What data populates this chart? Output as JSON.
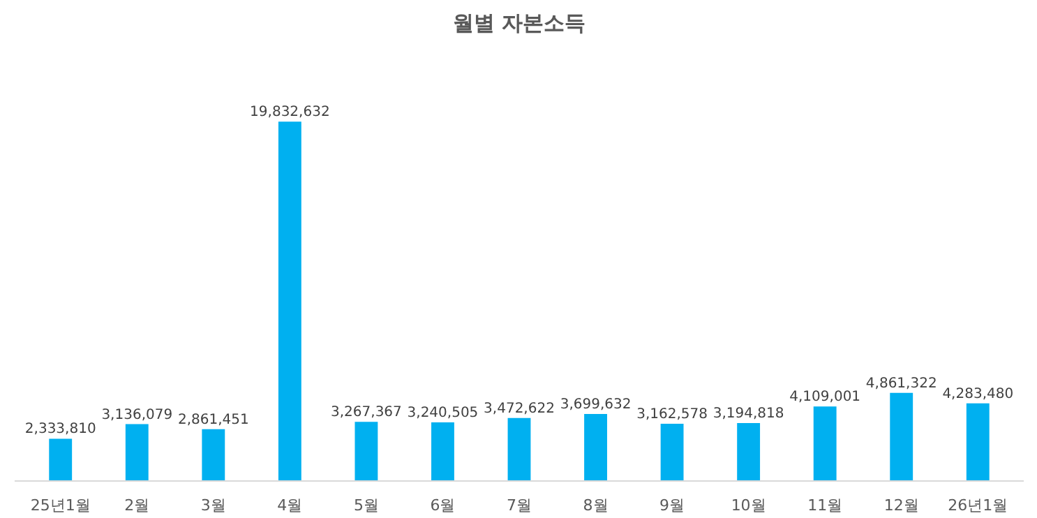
{
  "chart_data": {
    "type": "bar",
    "title": "월별 자본소득",
    "categories": [
      "25년1월",
      "2월",
      "3월",
      "4월",
      "5월",
      "6월",
      "7월",
      "8월",
      "9월",
      "10월",
      "11월",
      "12월",
      "26년1월"
    ],
    "values": [
      2333810,
      3136079,
      2861451,
      19832632,
      3267367,
      3240505,
      3472622,
      3699632,
      3162578,
      3194818,
      4109001,
      4861322,
      4283480
    ],
    "value_labels": [
      "2,333,810",
      "3,136,079",
      "2,861,451",
      "19,832,632",
      "3,267,367",
      "3,240,505",
      "3,472,622",
      "3,699,632",
      "3,162,578",
      "3,194,818",
      "4,109,001",
      "4,861,322",
      "4,283,480"
    ],
    "color": "#00b0f0",
    "grid": false
  }
}
